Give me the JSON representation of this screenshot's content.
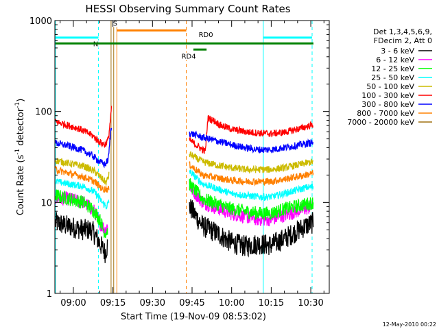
{
  "chart_data": {
    "type": "line",
    "title": "HESSI Observing Summary Count Rates",
    "xlabel": "Start Time (19-Nov-09 08:53:02)",
    "ylabel_parts": [
      "Count Rate (s",
      "-1",
      " detector",
      "-1",
      ")"
    ],
    "y_scale": "log",
    "ylim": [
      1,
      1000
    ],
    "xlim_minutes_after_0900": [
      -7,
      97
    ],
    "x_ticks": [
      {
        "label": "09:00",
        "min": 0
      },
      {
        "label": "09:15",
        "min": 15
      },
      {
        "label": "09:30",
        "min": 30
      },
      {
        "label": "09:45",
        "min": 45
      },
      {
        "label": "10:00",
        "min": 60
      },
      {
        "label": "10:15",
        "min": 75
      },
      {
        "label": "10:30",
        "min": 90
      }
    ],
    "y_ticks": [
      {
        "label": "1",
        "value": 1
      },
      {
        "label": "10",
        "value": 10
      },
      {
        "label": "100",
        "value": 100
      },
      {
        "label": "1000",
        "value": 1000
      }
    ],
    "legend_header": [
      "Det 1,3,4,5,6,9,",
      "FDecim 2, Att 0"
    ],
    "legend_placement": "right",
    "series": [
      {
        "name": "3 - 6 keV",
        "color": "#000000",
        "pre": [
          [
            -6.8,
            6
          ],
          [
            -2,
            5.5
          ],
          [
            4,
            5
          ],
          [
            7,
            5
          ],
          [
            9,
            4
          ],
          [
            12,
            2.8
          ],
          [
            13,
            3.4
          ]
        ],
        "post": [
          [
            44,
            9
          ],
          [
            49,
            5.5
          ],
          [
            55,
            4.5
          ],
          [
            60,
            3.6
          ],
          [
            65,
            3.3
          ],
          [
            70,
            3.5
          ],
          [
            75,
            3.4
          ],
          [
            80,
            4
          ],
          [
            88,
            5.5
          ],
          [
            91,
            6
          ]
        ]
      },
      {
        "name": "6 - 12 keV",
        "color": "#ff00ff",
        "pre": [
          [
            -6.8,
            11
          ],
          [
            -2,
            11
          ],
          [
            4,
            10
          ],
          [
            8,
            8
          ],
          [
            10,
            6
          ],
          [
            12,
            5
          ],
          [
            13,
            5.5
          ]
        ],
        "post": [
          [
            44,
            15
          ],
          [
            49,
            10
          ],
          [
            55,
            8.5
          ],
          [
            60,
            7.5
          ],
          [
            65,
            7
          ],
          [
            70,
            6.5
          ],
          [
            75,
            6.5
          ],
          [
            80,
            7.2
          ],
          [
            88,
            8.5
          ],
          [
            91,
            9
          ]
        ]
      },
      {
        "name": "12 - 25 keV",
        "color": "#00ff00",
        "pre": [
          [
            -6.8,
            12
          ],
          [
            -2,
            11
          ],
          [
            4,
            10
          ],
          [
            8,
            8
          ],
          [
            10,
            6.5
          ],
          [
            12,
            4.6
          ],
          [
            13,
            5
          ]
        ],
        "post": [
          [
            44,
            16
          ],
          [
            49,
            11
          ],
          [
            55,
            9.5
          ],
          [
            60,
            8.5
          ],
          [
            65,
            8
          ],
          [
            70,
            7.6
          ],
          [
            75,
            7.6
          ],
          [
            80,
            8.5
          ],
          [
            88,
            9.5
          ],
          [
            91,
            10
          ]
        ]
      },
      {
        "name": "25 - 50 keV",
        "color": "#00ffff",
        "pre": [
          [
            -6.8,
            17
          ],
          [
            -2,
            16
          ],
          [
            4,
            15
          ],
          [
            8,
            13
          ],
          [
            11,
            10
          ],
          [
            12.5,
            9
          ],
          [
            13.5,
            10
          ]
        ],
        "post": [
          [
            44,
            22
          ],
          [
            49,
            16
          ],
          [
            55,
            14
          ],
          [
            60,
            12.5
          ],
          [
            65,
            12
          ],
          [
            70,
            11.5
          ],
          [
            75,
            11.5
          ],
          [
            80,
            12.5
          ],
          [
            88,
            14.5
          ],
          [
            91,
            15
          ]
        ]
      },
      {
        "name": "50 - 100 keV",
        "color": "#ccbb00",
        "pre": [
          [
            -6.8,
            29
          ],
          [
            -2,
            27
          ],
          [
            4,
            25
          ],
          [
            8,
            22
          ],
          [
            11,
            18
          ],
          [
            12.5,
            16.5
          ],
          [
            13.5,
            20
          ]
        ],
        "post": [
          [
            44,
            34
          ],
          [
            49,
            28
          ],
          [
            55,
            25.5
          ],
          [
            60,
            24
          ],
          [
            65,
            23
          ],
          [
            70,
            23
          ],
          [
            75,
            23
          ],
          [
            80,
            24
          ],
          [
            88,
            27
          ],
          [
            91,
            28
          ]
        ]
      },
      {
        "name": "100 - 300 keV",
        "color": "#ff0000",
        "pre": [
          [
            -6.8,
            77
          ],
          [
            -3,
            72
          ],
          [
            2,
            65
          ],
          [
            7,
            55
          ],
          [
            10,
            46
          ],
          [
            12,
            43
          ],
          [
            13.3,
            50
          ],
          [
            14,
            80
          ],
          [
            14.5,
            110
          ]
        ],
        "post": [
          [
            44,
            49
          ],
          [
            46,
            44
          ],
          [
            48,
            40
          ],
          [
            50,
            36
          ],
          [
            51,
            85
          ],
          [
            53,
            80
          ],
          [
            56,
            70
          ],
          [
            60,
            64
          ],
          [
            65,
            60
          ],
          [
            70,
            58
          ],
          [
            75,
            57
          ],
          [
            80,
            59
          ],
          [
            86,
            65
          ],
          [
            91,
            72
          ]
        ]
      },
      {
        "name": "300 - 800 keV",
        "color": "#0000ff",
        "pre": [
          [
            -6.8,
            45
          ],
          [
            -2,
            42
          ],
          [
            3,
            38
          ],
          [
            7,
            33
          ],
          [
            10,
            28
          ],
          [
            12,
            26
          ],
          [
            13.3,
            30
          ],
          [
            14,
            55
          ],
          [
            14.5,
            70
          ]
        ],
        "post": [
          [
            44,
            58
          ],
          [
            49,
            52
          ],
          [
            55,
            47
          ],
          [
            60,
            43
          ],
          [
            65,
            40
          ],
          [
            70,
            38
          ],
          [
            75,
            38
          ],
          [
            80,
            40
          ],
          [
            88,
            44
          ],
          [
            91,
            46
          ]
        ]
      },
      {
        "name": "800 - 7000 keV",
        "color": "#ff8000",
        "pre": [
          [
            -6.8,
            23
          ],
          [
            -2,
            21
          ],
          [
            4,
            19
          ],
          [
            8,
            17
          ],
          [
            11,
            14
          ],
          [
            12.5,
            14
          ],
          [
            13.5,
            14
          ]
        ],
        "post": [
          [
            44,
            26
          ],
          [
            49,
            20
          ],
          [
            55,
            18.5
          ],
          [
            60,
            17.5
          ],
          [
            65,
            17
          ],
          [
            70,
            17
          ],
          [
            75,
            17
          ],
          [
            80,
            18
          ],
          [
            88,
            20
          ],
          [
            91,
            21
          ]
        ]
      },
      {
        "name": "7000 - 20000 keV",
        "color": "#a07010",
        "pre": [],
        "post": []
      }
    ],
    "attenuator_bars": [
      {
        "label": "N",
        "color": "#00ffff",
        "y": 650,
        "from": -6.8,
        "to": 9.5,
        "label_min": 7.5,
        "label_y": 520
      },
      {
        "label": "N",
        "color": "#00ffff",
        "y": 650,
        "from": 72,
        "to": 90.5,
        "label_min": null,
        "label_y": null
      },
      {
        "label": "S",
        "color": "#ff8000",
        "y": 780,
        "from": 16.5,
        "to": 42.8,
        "label_min": 15,
        "label_y": 880
      },
      {
        "label": "RD0",
        "color": "#008000",
        "y": 560,
        "from": -6.8,
        "to": 91,
        "label_min": 47.5,
        "label_y": 660
      },
      {
        "label": "RD4",
        "color": "#008000",
        "y": 480,
        "from": 45.5,
        "to": 50.5,
        "label_min": 41,
        "label_y": 380
      }
    ],
    "vertical_markers": [
      {
        "min": -6.8,
        "color": "#00ffff",
        "style": "solid"
      },
      {
        "min": 9.5,
        "color": "#00ffff",
        "style": "dashed"
      },
      {
        "min": 14.3,
        "color": "#a07010",
        "style": "solid"
      },
      {
        "min": 15.3,
        "color": "#a07010",
        "style": "solid"
      },
      {
        "min": 16.5,
        "color": "#ff8000",
        "style": "solid"
      },
      {
        "min": 42.8,
        "color": "#ff8000",
        "style": "dashed"
      },
      {
        "min": 72,
        "color": "#00ffff",
        "style": "solid"
      },
      {
        "min": 90.5,
        "color": "#00ffff",
        "style": "dashed"
      }
    ],
    "timestamp": "12-May-2010 00:22"
  }
}
